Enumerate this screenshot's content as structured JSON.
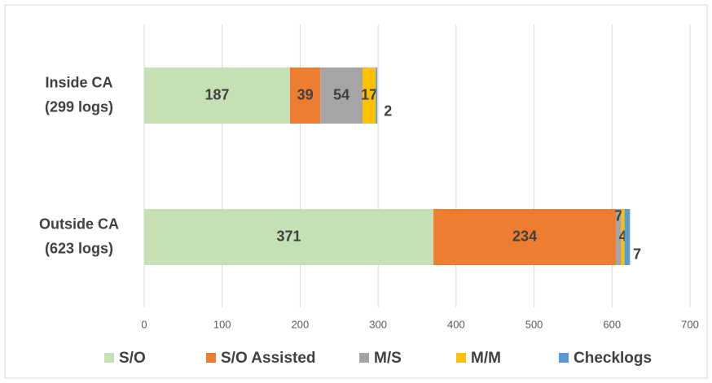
{
  "chart_data": {
    "type": "stacked-bar-horizontal",
    "categories": [
      [
        "Inside CA",
        "(299 logs)"
      ],
      [
        "Outside CA",
        "(623 logs)"
      ]
    ],
    "series": [
      {
        "name": "S/O",
        "color": "#c5e0b4",
        "values": [
          187,
          371
        ]
      },
      {
        "name": "S/O Assisted",
        "color": "#ed7d31",
        "values": [
          39,
          234
        ]
      },
      {
        "name": "M/S",
        "color": "#a5a5a5",
        "values": [
          54,
          7
        ]
      },
      {
        "name": "M/M",
        "color": "#ffc000",
        "values": [
          17,
          4
        ]
      },
      {
        "name": "Checklogs",
        "color": "#5b9bd5",
        "values": [
          2,
          7
        ]
      }
    ],
    "xlim": [
      0,
      700
    ],
    "xticks": [
      0,
      100,
      200,
      300,
      400,
      500,
      600,
      700
    ],
    "grid": true,
    "legend": "bottom"
  }
}
